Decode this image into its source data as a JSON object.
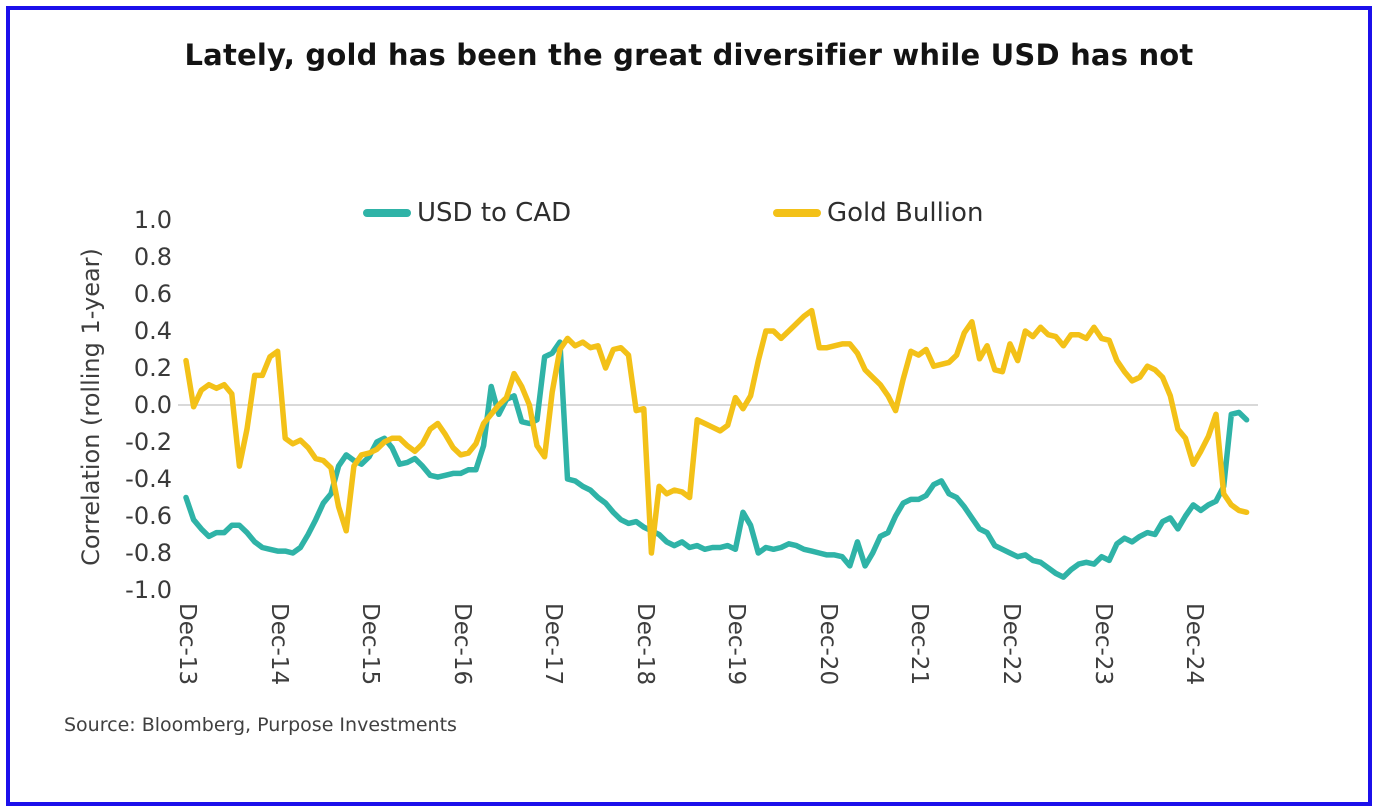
{
  "frame": {
    "border_color": "#1C10EB"
  },
  "title": "Lately, gold has been the great diversifier while USD has not",
  "y_axis_title": "Correlation (rolling 1-year)",
  "source": "Source: Bloomberg, Purpose Investments",
  "legend": [
    {
      "label": "USD to CAD",
      "color": "#2FB3A7"
    },
    {
      "label": "Gold Bullion",
      "color": "#F3C118"
    }
  ],
  "chart_data": {
    "type": "line",
    "title": "Lately, gold has been the great diversifier while USD has not",
    "ylabel": "Correlation (rolling 1-year)",
    "ylim": [
      -1.0,
      1.0
    ],
    "y_tick_labels": [
      "1.0",
      "0.8",
      "0.6",
      "0.4",
      "0.2",
      "0.0",
      "-0.2",
      "-0.4",
      "-0.6",
      "-0.8",
      "-1.0"
    ],
    "zero_line": true,
    "grid": "zero-line-only",
    "legend_position": "top",
    "x_unit": "monthly, starting Dec-2013",
    "x_ticks_every": 12,
    "x_tick_labels": [
      "Dec-13",
      "Dec-14",
      "Dec-15",
      "Dec-16",
      "Dec-17",
      "Dec-18",
      "Dec-19",
      "Dec-20",
      "Dec-21",
      "Dec-22",
      "Dec-23",
      "Dec-24"
    ],
    "series": [
      {
        "name": "USD to CAD",
        "color": "#2FB3A7",
        "values": [
          -0.5,
          -0.62,
          -0.67,
          -0.71,
          -0.69,
          -0.69,
          -0.65,
          -0.65,
          -0.69,
          -0.74,
          -0.77,
          -0.78,
          -0.79,
          -0.79,
          -0.8,
          -0.77,
          -0.7,
          -0.62,
          -0.53,
          -0.48,
          -0.33,
          -0.27,
          -0.3,
          -0.32,
          -0.28,
          -0.2,
          -0.18,
          -0.23,
          -0.32,
          -0.31,
          -0.29,
          -0.33,
          -0.38,
          -0.39,
          -0.38,
          -0.37,
          -0.37,
          -0.35,
          -0.35,
          -0.22,
          0.1,
          -0.05,
          0.03,
          0.05,
          -0.09,
          -0.1,
          -0.08,
          0.26,
          0.28,
          0.34,
          -0.4,
          -0.41,
          -0.44,
          -0.46,
          -0.5,
          -0.53,
          -0.58,
          -0.62,
          -0.64,
          -0.63,
          -0.66,
          -0.68,
          -0.7,
          -0.74,
          -0.76,
          -0.74,
          -0.77,
          -0.76,
          -0.78,
          -0.77,
          -0.77,
          -0.76,
          -0.78,
          -0.58,
          -0.65,
          -0.8,
          -0.77,
          -0.78,
          -0.77,
          -0.75,
          -0.76,
          -0.78,
          -0.79,
          -0.8,
          -0.81,
          -0.81,
          -0.82,
          -0.87,
          -0.74,
          -0.87,
          -0.8,
          -0.71,
          -0.69,
          -0.6,
          -0.53,
          -0.51,
          -0.51,
          -0.49,
          -0.43,
          -0.41,
          -0.48,
          -0.5,
          -0.55,
          -0.61,
          -0.67,
          -0.69,
          -0.76,
          -0.78,
          -0.8,
          -0.82,
          -0.81,
          -0.84,
          -0.85,
          -0.88,
          -0.91,
          -0.93,
          -0.89,
          -0.86,
          -0.85,
          -0.86,
          -0.82,
          -0.84,
          -0.75,
          -0.72,
          -0.74,
          -0.71,
          -0.69,
          -0.7,
          -0.63,
          -0.61,
          -0.67,
          -0.6,
          -0.54,
          -0.57,
          -0.54,
          -0.52,
          -0.44,
          -0.05,
          -0.04,
          -0.08
        ]
      },
      {
        "name": "Gold Bullion",
        "color": "#F3C118",
        "values": [
          0.24,
          -0.01,
          0.08,
          0.11,
          0.09,
          0.11,
          0.06,
          -0.33,
          -0.13,
          0.16,
          0.16,
          0.26,
          0.29,
          -0.18,
          -0.21,
          -0.19,
          -0.23,
          -0.29,
          -0.3,
          -0.34,
          -0.55,
          -0.68,
          -0.33,
          -0.27,
          -0.26,
          -0.24,
          -0.2,
          -0.18,
          -0.18,
          -0.22,
          -0.25,
          -0.21,
          -0.13,
          -0.1,
          -0.16,
          -0.23,
          -0.27,
          -0.26,
          -0.21,
          -0.1,
          -0.05,
          0,
          0.04,
          0.17,
          0.1,
          0,
          -0.22,
          -0.28,
          0.07,
          0.3,
          0.36,
          0.32,
          0.34,
          0.31,
          0.32,
          0.2,
          0.3,
          0.31,
          0.27,
          -0.03,
          -0.02,
          -0.8,
          -0.44,
          -0.48,
          -0.46,
          -0.47,
          -0.5,
          -0.08,
          -0.1,
          -0.12,
          -0.14,
          -0.11,
          0.04,
          -0.02,
          0.05,
          0.24,
          0.4,
          0.4,
          0.36,
          0.4,
          0.44,
          0.48,
          0.51,
          0.31,
          0.31,
          0.32,
          0.33,
          0.33,
          0.28,
          0.19,
          0.15,
          0.11,
          0.05,
          -0.03,
          0.14,
          0.29,
          0.27,
          0.3,
          0.21,
          0.22,
          0.23,
          0.27,
          0.39,
          0.45,
          0.25,
          0.32,
          0.19,
          0.18,
          0.33,
          0.24,
          0.4,
          0.37,
          0.42,
          0.38,
          0.37,
          0.32,
          0.38,
          0.38,
          0.36,
          0.42,
          0.36,
          0.35,
          0.24,
          0.18,
          0.13,
          0.15,
          0.21,
          0.19,
          0.15,
          0.05,
          -0.13,
          -0.18,
          -0.32,
          -0.25,
          -0.17,
          -0.05,
          -0.48,
          -0.54,
          -0.57,
          -0.58
        ]
      }
    ]
  }
}
